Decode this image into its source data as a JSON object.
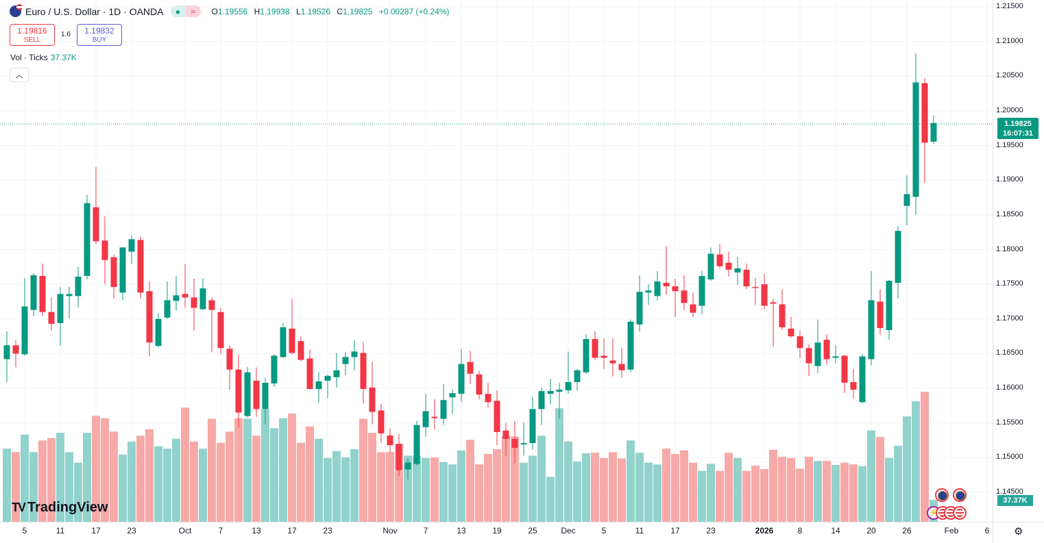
{
  "header": {
    "title": "Euro / U.S. Dollar · 1D · OANDA",
    "market_status_icon": "green-dot",
    "symbol_icon": "eur-usd-flags",
    "ohlc": {
      "o_label": "O",
      "o": "1.19556",
      "h_label": "H",
      "h": "1.19938",
      "l_label": "L",
      "l": "1.19526",
      "c_label": "C",
      "c": "1.19825",
      "change": "+0.00287 (+0.24%)"
    },
    "sell": {
      "price": "1.19816",
      "label": "SELL"
    },
    "buy": {
      "price": "1.19832",
      "label": "BUY"
    },
    "spread": "1.6",
    "volume_label": "Vol · Ticks",
    "volume_value": "37.37K"
  },
  "price_axis": {
    "current_price": "1.19825",
    "countdown": "16:07:31",
    "volume_badge": "37.37K"
  },
  "logo": "TradingView",
  "colors": {
    "up": "#089981",
    "down": "#f23645",
    "vol_up": "#92d2cc",
    "vol_down": "#f7a9a7"
  },
  "chart_data": {
    "type": "candlestick",
    "ylim": [
      1.145,
      1.215
    ],
    "y_ticks": [
      "1.21500",
      "1.21000",
      "1.20500",
      "1.20000",
      "1.19500",
      "1.19000",
      "1.18500",
      "1.18000",
      "1.17500",
      "1.17000",
      "1.16500",
      "1.16000",
      "1.15500",
      "1.15000",
      "1.14500"
    ],
    "grid": true,
    "x_ticks": [
      {
        "label": "5",
        "index": 2
      },
      {
        "label": "11",
        "index": 6
      },
      {
        "label": "17",
        "index": 10
      },
      {
        "label": "23",
        "index": 14
      },
      {
        "label": "Oct",
        "index": 20
      },
      {
        "label": "7",
        "index": 24
      },
      {
        "label": "13",
        "index": 28
      },
      {
        "label": "17",
        "index": 32
      },
      {
        "label": "23",
        "index": 36
      },
      {
        "label": "Nov",
        "index": 43
      },
      {
        "label": "7",
        "index": 47
      },
      {
        "label": "13",
        "index": 51
      },
      {
        "label": "19",
        "index": 55
      },
      {
        "label": "25",
        "index": 59
      },
      {
        "label": "Dec",
        "index": 63
      },
      {
        "label": "5",
        "index": 67
      },
      {
        "label": "11",
        "index": 71
      },
      {
        "label": "17",
        "index": 75
      },
      {
        "label": "23",
        "index": 79
      },
      {
        "label": "2026",
        "index": 85,
        "major": true
      },
      {
        "label": "8",
        "index": 89
      },
      {
        "label": "14",
        "index": 93
      },
      {
        "label": "20",
        "index": 97
      },
      {
        "label": "26",
        "index": 101
      },
      {
        "label": "Feb",
        "index": 106
      },
      {
        "label": "6",
        "index": 110
      }
    ],
    "candles_ohlc": [
      [
        1.1642,
        1.1682,
        1.1609,
        1.1662
      ],
      [
        1.1662,
        1.1669,
        1.163,
        1.165
      ],
      [
        1.1649,
        1.1759,
        1.1647,
        1.1718
      ],
      [
        1.1713,
        1.1766,
        1.1704,
        1.1763
      ],
      [
        1.1762,
        1.178,
        1.1704,
        1.171
      ],
      [
        1.171,
        1.1731,
        1.1683,
        1.1693
      ],
      [
        1.1694,
        1.1746,
        1.1661,
        1.1736
      ],
      [
        1.1733,
        1.1747,
        1.1701,
        1.1736
      ],
      [
        1.1733,
        1.1775,
        1.1717,
        1.1761
      ],
      [
        1.1762,
        1.1879,
        1.1757,
        1.1867
      ],
      [
        1.1861,
        1.1919,
        1.1808,
        1.1812
      ],
      [
        1.1813,
        1.1848,
        1.175,
        1.1785
      ],
      [
        1.1789,
        1.1793,
        1.1729,
        1.1746
      ],
      [
        1.1738,
        1.1804,
        1.1727,
        1.1803
      ],
      [
        1.1797,
        1.182,
        1.1779,
        1.1815
      ],
      [
        1.1814,
        1.1819,
        1.1729,
        1.1738
      ],
      [
        1.174,
        1.1754,
        1.1646,
        1.1666
      ],
      [
        1.1661,
        1.1708,
        1.1659,
        1.17
      ],
      [
        1.1702,
        1.1754,
        1.17,
        1.1727
      ],
      [
        1.1726,
        1.1762,
        1.1712,
        1.1734
      ],
      [
        1.1736,
        1.1779,
        1.1716,
        1.1731
      ],
      [
        1.1731,
        1.1758,
        1.1683,
        1.1716
      ],
      [
        1.1714,
        1.1759,
        1.1713,
        1.1744
      ],
      [
        1.1727,
        1.1731,
        1.1652,
        1.1713
      ],
      [
        1.171,
        1.1716,
        1.1649,
        1.1658
      ],
      [
        1.1657,
        1.1662,
        1.1598,
        1.1627
      ],
      [
        1.1627,
        1.1649,
        1.1543,
        1.1565
      ],
      [
        1.156,
        1.1631,
        1.1558,
        1.1623
      ],
      [
        1.1611,
        1.163,
        1.1559,
        1.157
      ],
      [
        1.157,
        1.1615,
        1.1548,
        1.1608
      ],
      [
        1.1607,
        1.1649,
        1.1602,
        1.1647
      ],
      [
        1.1645,
        1.1694,
        1.1644,
        1.1688
      ],
      [
        1.1686,
        1.1729,
        1.1649,
        1.1651
      ],
      [
        1.1668,
        1.1675,
        1.1639,
        1.1641
      ],
      [
        1.1643,
        1.1656,
        1.1598,
        1.1599
      ],
      [
        1.1599,
        1.1623,
        1.1579,
        1.161
      ],
      [
        1.1611,
        1.162,
        1.1586,
        1.1618
      ],
      [
        1.1616,
        1.1651,
        1.1601,
        1.1626
      ],
      [
        1.1635,
        1.1652,
        1.1619,
        1.1645
      ],
      [
        1.1645,
        1.1669,
        1.1626,
        1.1653
      ],
      [
        1.1651,
        1.1667,
        1.1578,
        1.1599
      ],
      [
        1.1601,
        1.1638,
        1.1548,
        1.1566
      ],
      [
        1.1568,
        1.1578,
        1.1521,
        1.1535
      ],
      [
        1.1532,
        1.1542,
        1.1507,
        1.1518
      ],
      [
        1.152,
        1.1534,
        1.1473,
        1.1482
      ],
      [
        1.1483,
        1.1499,
        1.1469,
        1.1493
      ],
      [
        1.1491,
        1.1553,
        1.1489,
        1.1547
      ],
      [
        1.1544,
        1.1592,
        1.153,
        1.1567
      ],
      [
        1.1559,
        1.1584,
        1.1541,
        1.1557
      ],
      [
        1.1556,
        1.1606,
        1.1547,
        1.1583
      ],
      [
        1.1587,
        1.1598,
        1.1563,
        1.1593
      ],
      [
        1.1592,
        1.1657,
        1.158,
        1.1635
      ],
      [
        1.1638,
        1.1654,
        1.1606,
        1.1621
      ],
      [
        1.162,
        1.1625,
        1.1584,
        1.1591
      ],
      [
        1.1592,
        1.1608,
        1.1572,
        1.158
      ],
      [
        1.1582,
        1.1597,
        1.1518,
        1.1537
      ],
      [
        1.1539,
        1.155,
        1.1503,
        1.1527
      ],
      [
        1.1527,
        1.1553,
        1.1492,
        1.1514
      ],
      [
        1.1519,
        1.1551,
        1.1503,
        1.1521
      ],
      [
        1.1521,
        1.1587,
        1.1512,
        1.157
      ],
      [
        1.157,
        1.1601,
        1.1547,
        1.1596
      ],
      [
        1.1592,
        1.1614,
        1.1577,
        1.1596
      ],
      [
        1.1595,
        1.1608,
        1.1556,
        1.1598
      ],
      [
        1.1597,
        1.1653,
        1.1592,
        1.1609
      ],
      [
        1.1609,
        1.1628,
        1.1597,
        1.1626
      ],
      [
        1.1623,
        1.1678,
        1.1621,
        1.1671
      ],
      [
        1.1671,
        1.1682,
        1.1641,
        1.1644
      ],
      [
        1.1647,
        1.1672,
        1.1628,
        1.1644
      ],
      [
        1.164,
        1.1672,
        1.1617,
        1.1636
      ],
      [
        1.1635,
        1.1658,
        1.1615,
        1.1626
      ],
      [
        1.1627,
        1.1699,
        1.1623,
        1.1696
      ],
      [
        1.1692,
        1.1763,
        1.1682,
        1.1739
      ],
      [
        1.1738,
        1.175,
        1.172,
        1.1741
      ],
      [
        1.1733,
        1.1769,
        1.1727,
        1.1754
      ],
      [
        1.1752,
        1.1805,
        1.1735,
        1.1747
      ],
      [
        1.1747,
        1.1758,
        1.1703,
        1.174
      ],
      [
        1.1741,
        1.1763,
        1.1713,
        1.1723
      ],
      [
        1.1721,
        1.1738,
        1.1703,
        1.1709
      ],
      [
        1.1719,
        1.1769,
        1.1707,
        1.1762
      ],
      [
        1.1757,
        1.1803,
        1.1755,
        1.1794
      ],
      [
        1.1793,
        1.1808,
        1.1773,
        1.1776
      ],
      [
        1.1781,
        1.1797,
        1.1761,
        1.1771
      ],
      [
        1.1767,
        1.1789,
        1.1749,
        1.1773
      ],
      [
        1.1771,
        1.178,
        1.1743,
        1.1747
      ],
      [
        1.1746,
        1.1759,
        1.172,
        1.1745
      ],
      [
        1.175,
        1.1765,
        1.1714,
        1.1719
      ],
      [
        1.1724,
        1.1729,
        1.166,
        1.1722
      ],
      [
        1.1721,
        1.1743,
        1.1684,
        1.1688
      ],
      [
        1.1686,
        1.1703,
        1.1673,
        1.1675
      ],
      [
        1.1675,
        1.1683,
        1.1643,
        1.1658
      ],
      [
        1.1658,
        1.1663,
        1.1618,
        1.1636
      ],
      [
        1.1632,
        1.1699,
        1.1622,
        1.1666
      ],
      [
        1.167,
        1.1678,
        1.1634,
        1.1642
      ],
      [
        1.1644,
        1.1662,
        1.1636,
        1.1646
      ],
      [
        1.1647,
        1.1648,
        1.1593,
        1.1608
      ],
      [
        1.1609,
        1.1628,
        1.1585,
        1.1598
      ],
      [
        1.158,
        1.1649,
        1.1578,
        1.1646
      ],
      [
        1.1642,
        1.1769,
        1.1633,
        1.1727
      ],
      [
        1.1725,
        1.1743,
        1.1677,
        1.1687
      ],
      [
        1.1684,
        1.1756,
        1.167,
        1.1755
      ],
      [
        1.1752,
        1.1834,
        1.1729,
        1.1827
      ],
      [
        1.1863,
        1.1907,
        1.1835,
        1.188
      ],
      [
        1.1876,
        1.2083,
        1.185,
        1.2041
      ],
      [
        1.204,
        1.2047,
        1.1896,
        1.1954
      ],
      [
        1.19556,
        1.19938,
        1.19526,
        1.19825
      ]
    ],
    "volume_k": [
      125,
      119,
      149,
      119,
      139,
      143,
      152,
      119,
      101,
      152,
      181,
      177,
      154,
      115,
      137,
      147,
      158,
      129,
      125,
      142,
      195,
      137,
      125,
      176,
      135,
      154,
      177,
      176,
      147,
      192,
      160,
      177,
      185,
      135,
      163,
      142,
      109,
      121,
      110,
      124,
      176,
      152,
      119,
      119,
      133,
      113,
      113,
      109,
      110,
      102,
      98,
      122,
      140,
      98,
      116,
      124,
      146,
      146,
      101,
      113,
      147,
      77,
      194,
      137,
      103,
      117,
      118,
      109,
      119,
      108,
      139,
      118,
      101,
      98,
      125,
      116,
      122,
      101,
      87,
      99,
      87,
      118,
      109,
      87,
      96,
      90,
      123,
      111,
      109,
      91,
      111,
      104,
      104,
      97,
      101,
      98,
      95,
      156,
      145,
      109,
      130,
      180,
      206,
      222,
      37.37
    ]
  },
  "events": [
    "eu-event-icon",
    "eu-event-icon",
    "lightning-icon",
    "us-event-icon",
    "us-event-icon",
    "us-event-icon"
  ]
}
